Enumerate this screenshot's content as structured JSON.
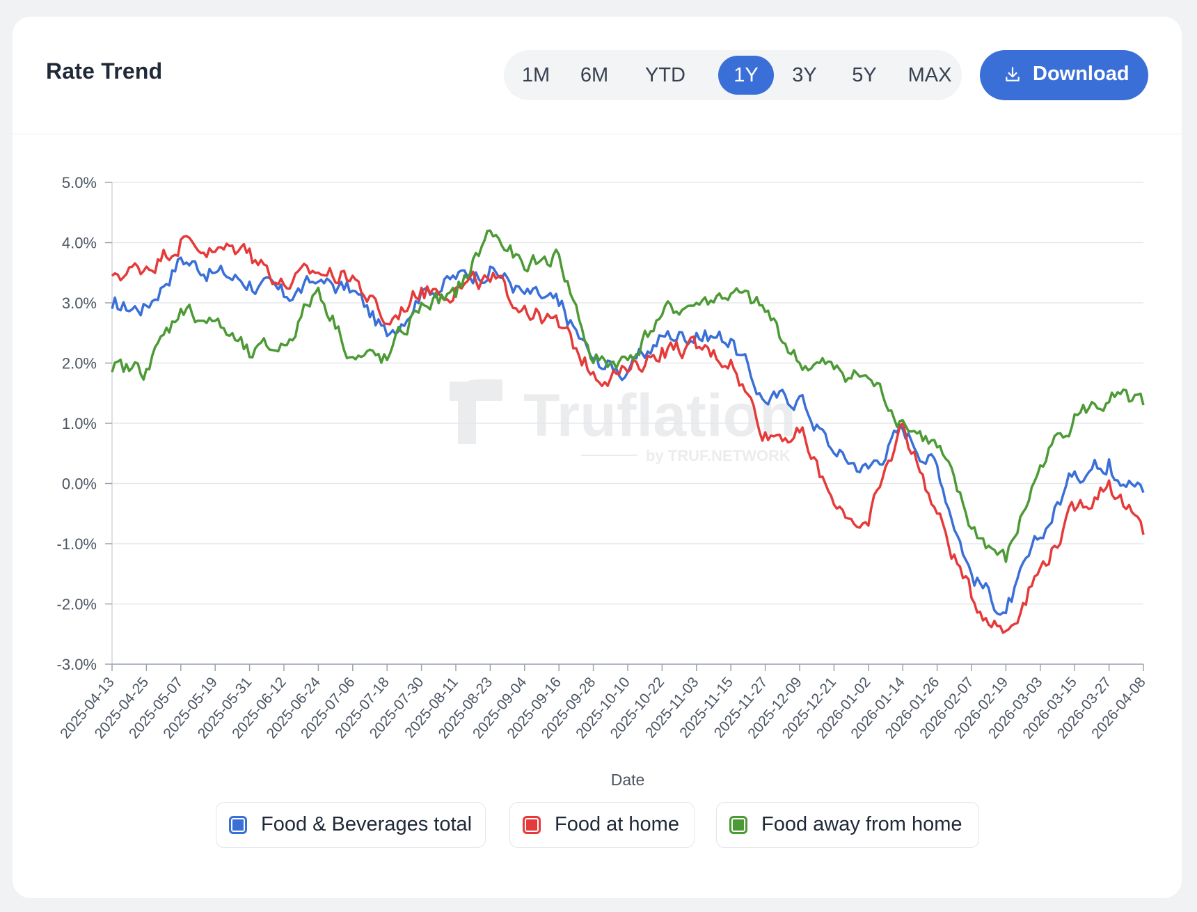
{
  "header": {
    "title": "Rate Trend",
    "ranges": [
      "1M",
      "6M",
      "YTD",
      "1Y",
      "3Y",
      "5Y",
      "MAX"
    ],
    "active_range": "1Y",
    "download_label": "Download"
  },
  "watermark": {
    "brand": "Truflation",
    "tagline": "by TRUF.NETWORK"
  },
  "colors": {
    "accent": "#3b6fd8",
    "series_blue": "#3a6fd8",
    "series_red": "#e63a3a",
    "series_green": "#4c9a36",
    "grid": "#e5e7eb",
    "axis_text": "#4b5563"
  },
  "chart_data": {
    "type": "line",
    "title": "Rate Trend",
    "xlabel": "Date",
    "ylabel": "",
    "ylim": [
      -3.0,
      5.0
    ],
    "yticks": [
      5.0,
      4.0,
      3.0,
      2.0,
      1.0,
      0.0,
      -1.0,
      -2.0,
      -3.0
    ],
    "ytick_labels": [
      "5.0%",
      "4.0%",
      "3.0%",
      "2.0%",
      "1.0%",
      "0.0%",
      "-1.0%",
      "-2.0%",
      "-3.0%"
    ],
    "grid": true,
    "legend_position": "bottom",
    "x": [
      "2025-04-13",
      "2025-04-25",
      "2025-05-07",
      "2025-05-19",
      "2025-05-31",
      "2025-06-12",
      "2025-06-24",
      "2025-07-06",
      "2025-07-18",
      "2025-07-30",
      "2025-08-11",
      "2025-08-23",
      "2025-09-04",
      "2025-09-16",
      "2025-09-28",
      "2025-10-10",
      "2025-10-22",
      "2025-11-03",
      "2025-11-15",
      "2025-11-27",
      "2025-12-09",
      "2025-12-21",
      "2026-01-02",
      "2026-01-14",
      "2026-01-26",
      "2026-02-07",
      "2026-02-19",
      "2026-03-03",
      "2026-03-15",
      "2026-03-27",
      "2026-04-08"
    ],
    "series": [
      {
        "name": "Food & Beverages total",
        "color": "#3a6fd8",
        "values": [
          2.9,
          2.95,
          3.75,
          3.5,
          3.35,
          3.1,
          3.35,
          3.2,
          2.45,
          3.2,
          3.4,
          3.6,
          3.15,
          2.95,
          2.05,
          1.85,
          2.45,
          2.5,
          2.4,
          1.35,
          1.45,
          0.5,
          0.25,
          0.9,
          0.3,
          -1.5,
          -2.15,
          -0.9,
          0.2,
          0.4,
          -0.15
        ]
      },
      {
        "name": "Food at home",
        "color": "#e63a3a",
        "values": [
          3.45,
          3.6,
          4.05,
          3.85,
          3.9,
          3.3,
          3.5,
          3.45,
          2.65,
          3.25,
          3.25,
          3.35,
          2.95,
          2.6,
          1.85,
          1.85,
          2.25,
          2.25,
          2.05,
          0.85,
          0.85,
          -0.35,
          -0.7,
          1.0,
          -0.5,
          -1.9,
          -2.45,
          -1.4,
          -0.45,
          0.05,
          -0.85
        ]
      },
      {
        "name": "Food away from home",
        "color": "#4c9a36",
        "values": [
          1.85,
          1.9,
          2.9,
          2.7,
          2.1,
          2.3,
          3.25,
          2.1,
          2.05,
          3.0,
          3.1,
          4.2,
          3.55,
          3.8,
          2.0,
          2.05,
          2.8,
          3.0,
          3.15,
          2.85,
          2.0,
          1.9,
          1.75,
          1.05,
          0.6,
          -0.75,
          -1.3,
          0.3,
          1.15,
          1.35,
          1.3
        ]
      }
    ]
  }
}
